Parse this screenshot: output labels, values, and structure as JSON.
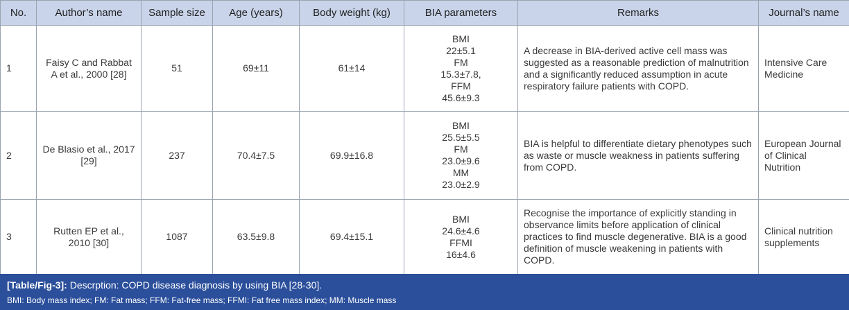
{
  "table": {
    "header": [
      "No.",
      "Author’s name",
      "Sample size",
      "Age (years)",
      "Body weight (kg)",
      "BIA parameters",
      "Remarks",
      "Journal’s name"
    ],
    "rows": [
      [
        "1",
        "Faisy C and Rabbat A et al., 2000 [28]",
        "51",
        "69±11",
        "61±14",
        [
          "BMI",
          "22±5.1",
          "FM",
          "15.3±7.8,",
          "FFM",
          "45.6±9.3"
        ],
        "A decrease in BIA-derived active cell mass was suggested as a reasonable prediction of malnutrition and a significantly reduced assumption in acute respiratory failure patients with COPD.",
        "Intensive Care Medicine"
      ],
      [
        "2",
        "De Blasio et al., 2017 [29]",
        "237",
        "70.4±7.5",
        "69.9±16.8",
        [
          "BMI",
          "25.5±5.5",
          "FM",
          "23.0±9.6",
          "MM",
          "23.0±2.9"
        ],
        "BIA is helpful to differentiate dietary phenotypes such as waste or muscle weakness in patients suffering from COPD.",
        "European Journal of Clinical Nutrition"
      ],
      [
        "3",
        "Rutten EP et al., 2010 [30]",
        "1087",
        "63.5±9.8",
        "69.4±15.1",
        [
          "BMI",
          "24.6±4.6",
          "FFMI",
          "16±4.6"
        ],
        "Recognise the importance of explicitly standing in observance limits before application of clinical practices to find muscle degenerative. BIA is a good definition of muscle weakening in patients with COPD.",
        "Clinical nutrition supplements"
      ]
    ]
  },
  "caption": {
    "label": "[Table/Fig-3]:",
    "text": "Descrption: COPD disease diagnosis by using BIA [28-30].",
    "footnote": "BMI: Body mass index; FM: Fat mass; FFM: Fat-free mass; FFMI: Fat free mass index; MM: Muscle mass"
  }
}
